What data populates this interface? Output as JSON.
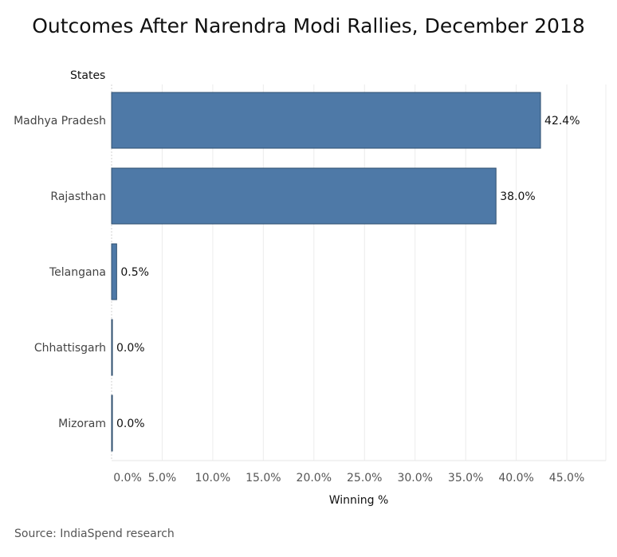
{
  "chart_data": {
    "type": "bar",
    "orientation": "horizontal",
    "title": "Outcomes After Narendra Modi Rallies, December 2018",
    "ylabel": "States",
    "xlabel": "Winning %",
    "categories": [
      "Madhya Pradesh",
      "Rajasthan",
      "Telangana",
      "Chhattisgarh",
      "Mizoram"
    ],
    "values": [
      42.4,
      38.0,
      0.5,
      0.0,
      0.0
    ],
    "value_labels": [
      "42.4%",
      "38.0%",
      "0.5%",
      "0.0%",
      "0.0%"
    ],
    "xlim": [
      0,
      48
    ],
    "xticks": [
      0,
      5,
      10,
      15,
      20,
      25,
      30,
      35,
      40,
      45
    ],
    "xtick_labels": [
      "0.0%",
      "5.0%",
      "10.0%",
      "15.0%",
      "20.0%",
      "25.0%",
      "30.0%",
      "35.0%",
      "40.0%",
      "45.0%"
    ],
    "bar_color": "#4e79a7",
    "grid": true,
    "source": "Source: IndiaSpend research"
  }
}
